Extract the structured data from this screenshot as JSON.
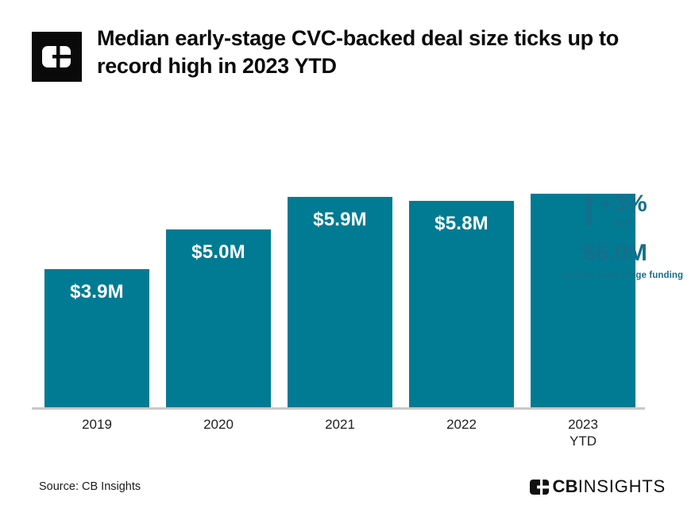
{
  "header": {
    "title_line1": "Median early-stage CVC-backed deal size ticks up to",
    "title_line2": "record high in 2023 YTD",
    "logo_icon": "cb-insights-logomark"
  },
  "chart_data": {
    "type": "bar",
    "title": "Median early-stage CVC-backed deal size ticks up to record high in 2023 YTD",
    "categories": [
      "2019",
      "2020",
      "2021",
      "2022",
      "2023\nYTD"
    ],
    "values": [
      3.9,
      5.0,
      5.9,
      5.8,
      6.0
    ],
    "value_labels": [
      "$3.9M",
      "$5.0M",
      "$5.9M",
      "$5.8M",
      "$6.0M"
    ],
    "label_inside": [
      true,
      true,
      true,
      true,
      false
    ],
    "unit": "USD millions",
    "ylim": [
      0,
      6.6
    ],
    "grid": false,
    "bar_color": "#007b93",
    "annotation": {
      "arrow_icon": "up-arrow-icon",
      "change_label": "+3%",
      "change_sublabel": "YoY",
      "value_label": "$6.0M",
      "value_sublabel": "median early-stage funding",
      "color": "#156f8c"
    }
  },
  "footer": {
    "source": "Source: CB Insights",
    "brand_icon": "cb-insights-logomark",
    "brand_bold": "CB",
    "brand_light": "INSIGHTS"
  },
  "colors": {
    "bar_teal": "#007b93",
    "annotation_teal": "#156f8c",
    "axis_gray": "#c8c8c8",
    "title_black": "#0a0a0a"
  }
}
